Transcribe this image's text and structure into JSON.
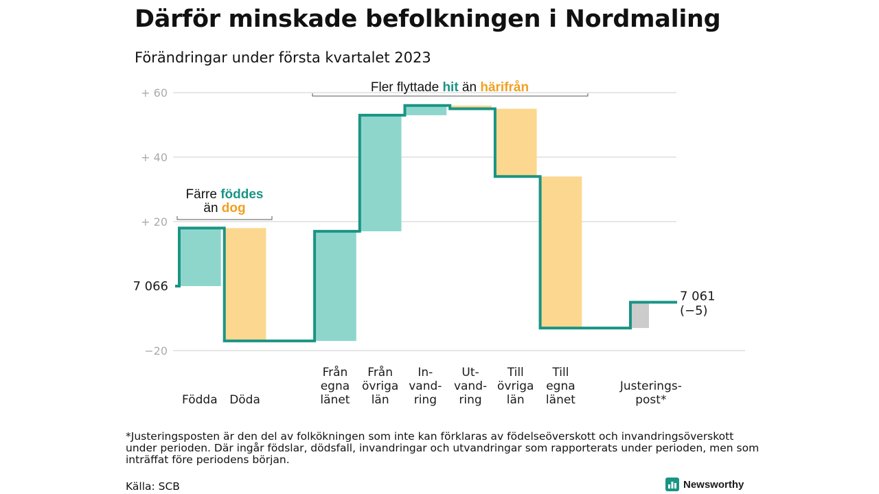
{
  "title": "Därför minskade befolkningen i Nordmaling",
  "subtitle": "Förändringar under första kvartalet 2023",
  "footnote": "*Justeringsposten är den del av folkökningen som inte kan förklaras av födelseöverskott och invandringsöverskott under perioden. Där ingår födslar, dödsfall, invandringar och utvandringar som rapporterats under perioden, men som inträffat före periodens början.",
  "source": "Källa: SCB",
  "brand": "Newsworthy",
  "colors": {
    "positive": "#8ed6cc",
    "negative": "#fbd78f",
    "adjustment": "#cccccc",
    "line": "#1a9484",
    "teal_text": "#1a9484",
    "orange_text": "#f0a020",
    "grid": "#dddddd"
  },
  "chart_data": {
    "type": "waterfall",
    "start_label": "7 066",
    "start_value": 7066,
    "end_label": "7 061",
    "end_change_label": "(−5)",
    "end_value": 7061,
    "y_ticks": [
      {
        "value": 60,
        "label": "+ 60"
      },
      {
        "value": 40,
        "label": "+ 40"
      },
      {
        "value": 20,
        "label": "+ 20"
      },
      {
        "value": -20,
        "label": "−20"
      }
    ],
    "ylim": [
      -20,
      60
    ],
    "steps": [
      {
        "label": "Födda",
        "value": 18,
        "from": 0,
        "to": 18,
        "kind": "positive"
      },
      {
        "label": "Döda",
        "value": -35,
        "from": 18,
        "to": -17,
        "kind": "negative"
      },
      {
        "label": "",
        "value": 0,
        "from": -17,
        "to": -17,
        "kind": "gap"
      },
      {
        "label": "Från\negna\nlänet",
        "value": 34,
        "from": -17,
        "to": 17,
        "kind": "positive"
      },
      {
        "label": "Från\növriga\nlän",
        "value": 36,
        "from": 17,
        "to": 53,
        "kind": "positive"
      },
      {
        "label": "In-\nvand-\nring",
        "value": 3,
        "from": 53,
        "to": 56,
        "kind": "positive"
      },
      {
        "label": "Ut-\nvand-\nring",
        "value": -1,
        "from": 56,
        "to": 55,
        "kind": "negative"
      },
      {
        "label": "Till\növriga\nlän",
        "value": -21,
        "from": 55,
        "to": 34,
        "kind": "negative"
      },
      {
        "label": "Till\negna\nlänet",
        "value": -47,
        "from": 34,
        "to": -13,
        "kind": "negative"
      },
      {
        "label": "",
        "value": 0,
        "from": -13,
        "to": -13,
        "kind": "gap"
      },
      {
        "label": "Justerings-\npost*",
        "value": 8,
        "from": -13,
        "to": -5,
        "kind": "adjustment"
      }
    ],
    "annotations": [
      {
        "parts": [
          {
            "text": "Färre ",
            "color": "dark"
          },
          {
            "text": "föddes",
            "color": "teal"
          }
        ]
      },
      {
        "parts": [
          {
            "text": "än ",
            "color": "dark"
          },
          {
            "text": "dog",
            "color": "orange"
          }
        ]
      },
      {
        "parts": [
          {
            "text": "Fler flyttade ",
            "color": "dark"
          },
          {
            "text": "hit",
            "color": "teal"
          },
          {
            "text": " än ",
            "color": "dark"
          },
          {
            "text": "härifrån",
            "color": "orange"
          }
        ]
      }
    ]
  }
}
